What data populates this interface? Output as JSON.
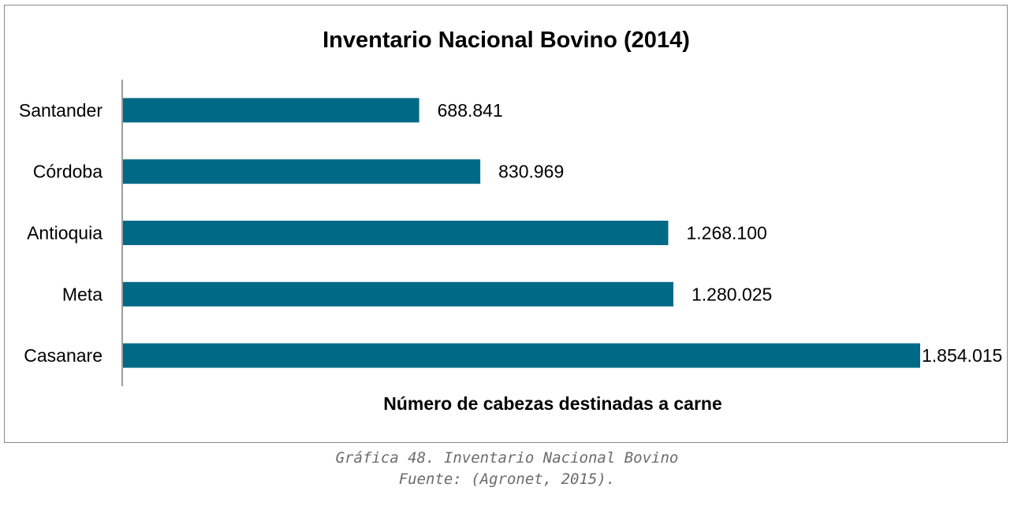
{
  "chart_data": {
    "type": "bar",
    "orientation": "horizontal",
    "title": "Inventario Nacional Bovino (2014)",
    "xlabel": "Número de cabezas destinadas a carne",
    "ylabel": "",
    "categories": [
      "Santander",
      "Córdoba",
      "Antioquia",
      "Meta",
      "Casanare"
    ],
    "values": [
      688841,
      830969,
      1268100,
      1280025,
      1854015
    ],
    "value_labels": [
      "688.841",
      "830.969",
      "1.268.100",
      "1.280.025",
      "1.854.015"
    ],
    "xlim": [
      0,
      1854015
    ],
    "grid": false,
    "legend": "none",
    "bar_color": "#006a86"
  },
  "caption": {
    "line1": "Gráfica 48. Inventario Nacional Bovino",
    "line2": "Fuente: (Agronet, 2015)."
  }
}
